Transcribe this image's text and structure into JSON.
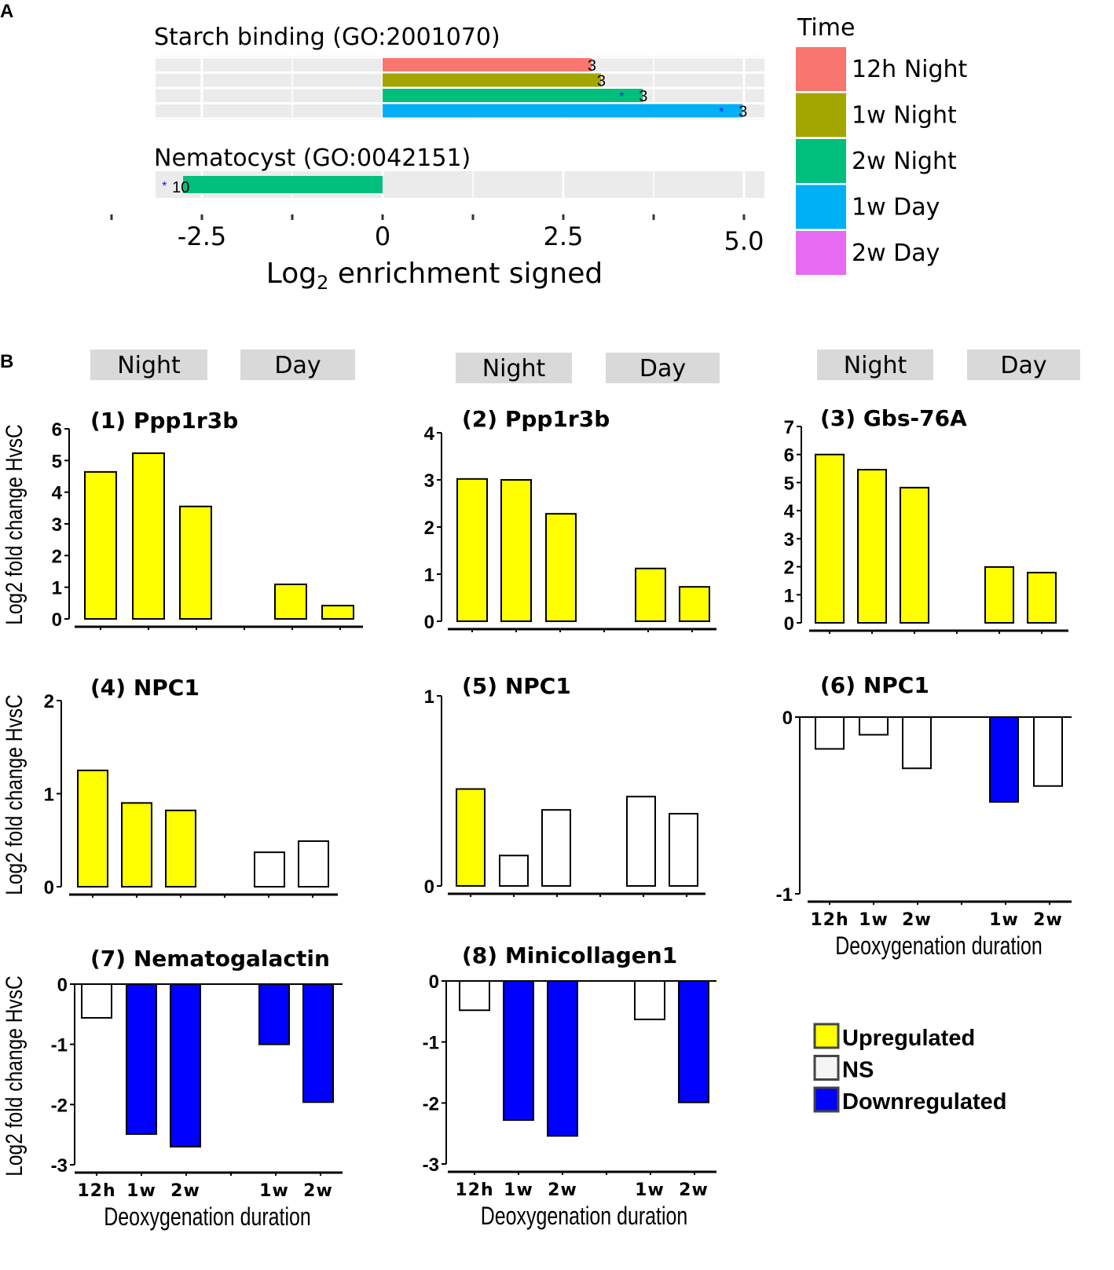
{
  "chart_data": [
    {
      "panel": "A",
      "type": "bar",
      "orientation": "horizontal",
      "xlabel": "Log2 enrichment signed",
      "xlim": [
        -3.2,
        5.4
      ],
      "xticks": [
        "-2.5",
        "0",
        "2.5",
        "5.0"
      ],
      "xtick_values": [
        -2.5,
        0,
        2.5,
        5.0
      ],
      "legend_title": "Time",
      "legend_placement": "right",
      "legend": [
        {
          "label": "12h Night",
          "color": "#F8766D"
        },
        {
          "label": "1w Night",
          "color": "#A3A500"
        },
        {
          "label": "2w Night",
          "color": "#00BF7D"
        },
        {
          "label": "1w Day",
          "color": "#00B0F6"
        },
        {
          "label": "2w Day",
          "color": "#E76BF3"
        }
      ],
      "groups": [
        {
          "title": "Starch binding (GO:2001070)",
          "bars": [
            {
              "time": "12h Night",
              "value": 2.89,
              "count": "3",
              "significant": false
            },
            {
              "time": "1w Night",
              "value": 3.02,
              "count": "3",
              "significant": false
            },
            {
              "time": "2w Night",
              "value": 3.6,
              "count": "3",
              "significant": true
            },
            {
              "time": "1w Day",
              "value": 4.98,
              "count": "3",
              "significant": true
            }
          ]
        },
        {
          "title": "Nematocyst (GO:0042151)",
          "bars": [
            {
              "time": "2w Night",
              "value": -2.76,
              "count": "10",
              "significant": true
            }
          ]
        }
      ],
      "star": "*"
    },
    {
      "panel": "B",
      "type": "bar",
      "ylabel": "Log2 fold change HvsC",
      "xlabel": "Deoxygenation duration",
      "strips": [
        "Night",
        "Day"
      ],
      "categories": [
        "12h",
        "1w",
        "2w",
        "1w",
        "2w"
      ],
      "legend": [
        {
          "key": "up",
          "label": "Upregulated",
          "color": "#FFFF00"
        },
        {
          "key": "ns",
          "label": "NS",
          "color": "#FFFFFF"
        },
        {
          "key": "down",
          "label": "Downregulated",
          "color": "#0000FF"
        }
      ],
      "subplots": [
        {
          "num": "(1)",
          "gene": "Ppp1r3b",
          "ylim": [
            0,
            6
          ],
          "yticks": [
            "0",
            "1",
            "2",
            "3",
            "4",
            "5",
            "6"
          ],
          "values": [
            4.64,
            5.23,
            3.55,
            1.09,
            0.42
          ],
          "status": [
            "up",
            "up",
            "up",
            "up",
            "up"
          ]
        },
        {
          "num": "(2)",
          "gene": "Ppp1r3b",
          "ylim": [
            0,
            4
          ],
          "yticks": [
            "0",
            "1",
            "2",
            "3",
            "4"
          ],
          "values": [
            3.02,
            3.0,
            2.28,
            1.12,
            0.73
          ],
          "status": [
            "up",
            "up",
            "up",
            "up",
            "up"
          ]
        },
        {
          "num": "(3)",
          "gene": "Gbs-76A",
          "ylim": [
            0,
            7
          ],
          "yticks": [
            "0",
            "1",
            "2",
            "3",
            "4",
            "5",
            "6",
            "7"
          ],
          "values": [
            6.0,
            5.46,
            4.82,
            1.99,
            1.79
          ],
          "status": [
            "up",
            "up",
            "up",
            "up",
            "up"
          ]
        },
        {
          "num": "(4)",
          "gene": "NPC1",
          "ylim": [
            0,
            2
          ],
          "yticks": [
            "0",
            "1",
            "2"
          ],
          "values": [
            1.25,
            0.9,
            0.82,
            0.37,
            0.49
          ],
          "status": [
            "up",
            "up",
            "up",
            "ns",
            "ns"
          ]
        },
        {
          "num": "(5)",
          "gene": "NPC1",
          "ylim": [
            0,
            1
          ],
          "yticks": [
            "0",
            "1"
          ],
          "values": [
            0.51,
            0.16,
            0.4,
            0.47,
            0.38
          ],
          "status": [
            "up",
            "ns",
            "ns",
            "ns",
            "ns"
          ]
        },
        {
          "num": "(6)",
          "gene": "NPC1",
          "ylim": [
            -1,
            0
          ],
          "yticks": [
            "-1",
            "0"
          ],
          "values": [
            -0.18,
            -0.1,
            -0.29,
            -0.48,
            -0.39
          ],
          "status": [
            "ns",
            "ns",
            "ns",
            "down",
            "ns"
          ]
        },
        {
          "num": "(7)",
          "gene": "Nematogalactin",
          "ylim": [
            -3,
            0
          ],
          "yticks": [
            "-3",
            "-2",
            "-1",
            "0"
          ],
          "values": [
            -0.56,
            -2.49,
            -2.7,
            -1.0,
            -1.96
          ],
          "status": [
            "ns",
            "down",
            "down",
            "down",
            "down"
          ]
        },
        {
          "num": "(8)",
          "gene": "Minicollagen1",
          "ylim": [
            -3,
            0
          ],
          "yticks": [
            "-3",
            "-2",
            "-1",
            "0"
          ],
          "values": [
            -0.48,
            -2.28,
            -2.54,
            -0.63,
            -1.99
          ],
          "status": [
            "ns",
            "down",
            "down",
            "ns",
            "down"
          ]
        }
      ]
    }
  ],
  "labels": {
    "panel_a": "A",
    "panel_b": "B"
  }
}
